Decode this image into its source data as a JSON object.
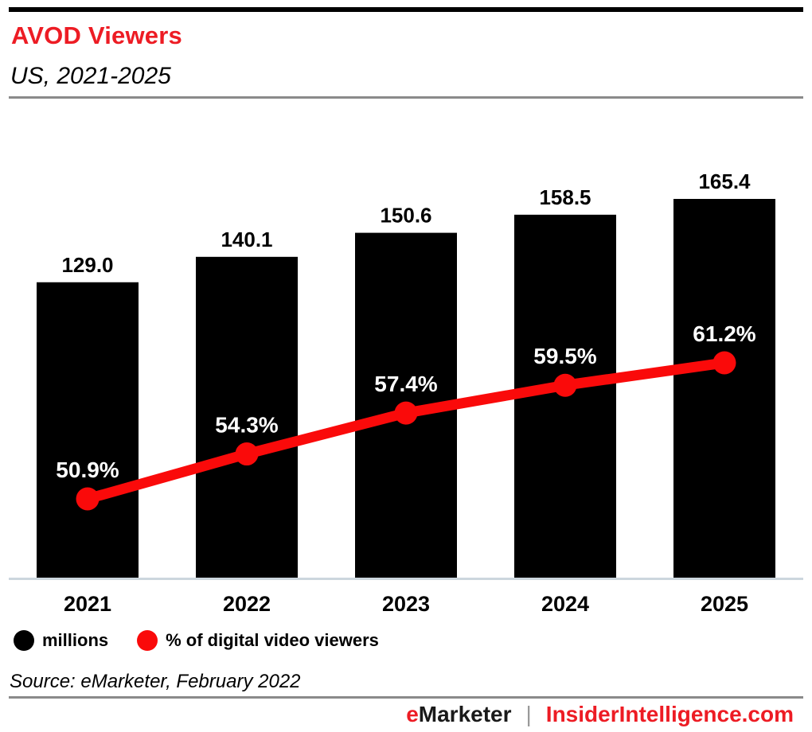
{
  "header": {
    "title": "AVOD Viewers",
    "subtitle": "US, 2021-2025"
  },
  "chart_data": {
    "type": "bar",
    "subtype": "bar-with-line-overlay",
    "title": "AVOD Viewers",
    "subtitle": "US, 2021-2025",
    "categories": [
      "2021",
      "2022",
      "2023",
      "2024",
      "2025"
    ],
    "series": [
      {
        "name": "millions",
        "type": "bar",
        "color": "#000000",
        "values": [
          129.0,
          140.1,
          150.6,
          158.5,
          165.4
        ],
        "labels": [
          "129.0",
          "140.1",
          "150.6",
          "158.5",
          "165.4"
        ]
      },
      {
        "name": "% of digital video viewers",
        "type": "line",
        "color": "#fa0a0a",
        "values": [
          50.9,
          54.3,
          57.4,
          59.5,
          61.2
        ],
        "labels": [
          "50.9%",
          "54.3%",
          "57.4%",
          "59.5%",
          "61.2%"
        ]
      }
    ],
    "bar_axis_starts_at_zero": true,
    "grid": false,
    "axes_visible": false,
    "legend_position": "bottom-left",
    "data_labels": "above-points"
  },
  "legend": {
    "items": [
      {
        "label": "millions",
        "color": "#000000"
      },
      {
        "label": "% of digital video viewers",
        "color": "#fa0a0a"
      }
    ]
  },
  "source": "Source: eMarketer, February 2022",
  "footer": {
    "brand_accent": "e",
    "brand_rest": "Marketer",
    "separator": "|",
    "site": "InsiderIntelligence.com"
  },
  "colors": {
    "accent_red": "#ed1c24",
    "line_red": "#fa0a0a",
    "bar_black": "#000000",
    "rule_gray": "#8a8a8a",
    "baseline_gray": "#ccd6de",
    "label_white": "#ffffff"
  }
}
